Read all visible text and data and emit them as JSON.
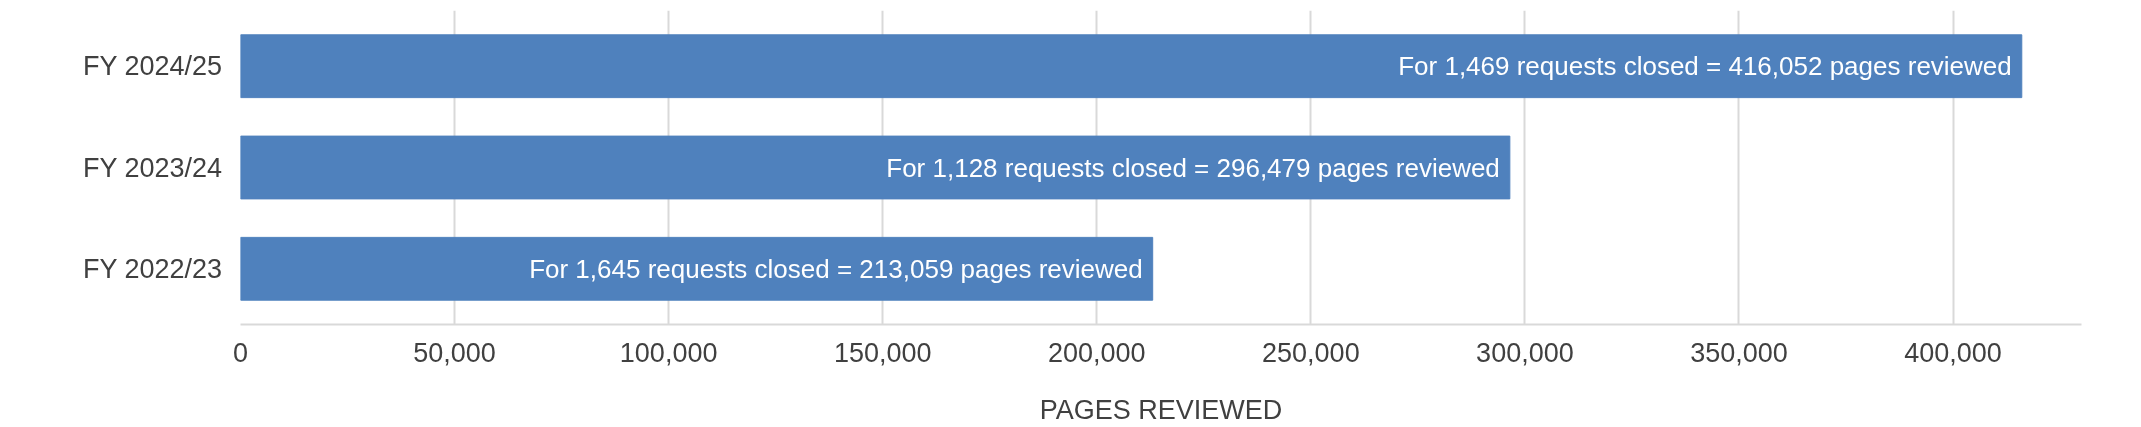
{
  "chart_data": {
    "type": "bar",
    "orientation": "horizontal",
    "xlabel": "PAGES REVIEWED",
    "categories": [
      "FY 2024/25",
      "FY 2023/24",
      "FY 2022/23"
    ],
    "values": [
      416052,
      296479,
      213059
    ],
    "value_labels": [
      "For 1,469 requests closed = 416,052 pages reviewed",
      "For 1,128 requests closed = 296,479 pages reviewed",
      "For 1,645 requests closed = 213,059 pages reviewed"
    ],
    "color": "#4f81bd",
    "xlim": [
      0,
      430000
    ],
    "xticks": [
      {
        "value": 0,
        "label": "0"
      },
      {
        "value": 50000,
        "label": "50,000"
      },
      {
        "value": 100000,
        "label": "100,000"
      },
      {
        "value": 150000,
        "label": "150,000"
      },
      {
        "value": 200000,
        "label": "200,000"
      },
      {
        "value": 250000,
        "label": "250,000"
      },
      {
        "value": 300000,
        "label": "300,000"
      },
      {
        "value": 350000,
        "label": "350,000"
      },
      {
        "value": 400000,
        "label": "400,000"
      }
    ],
    "grid": "x"
  }
}
